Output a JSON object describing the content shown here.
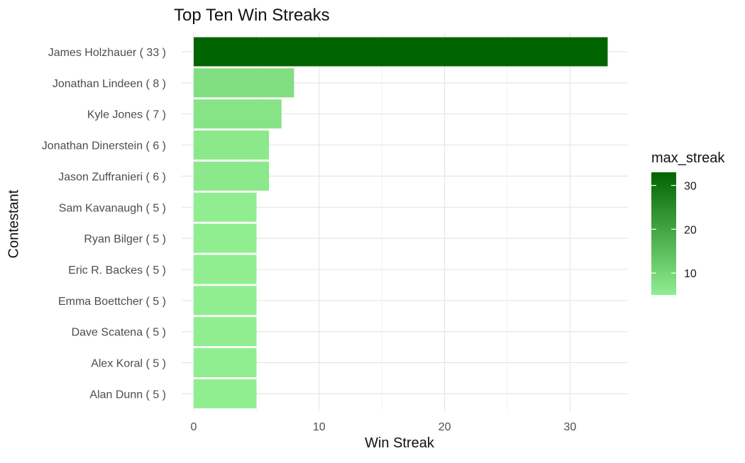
{
  "chart_data": {
    "type": "bar",
    "orientation": "horizontal",
    "title": "Top Ten Win Streaks",
    "xlabel": "Win Streak",
    "ylabel": "Contestant",
    "xlim": [
      0,
      35
    ],
    "x_ticks": [
      0,
      10,
      20,
      30
    ],
    "grid": true,
    "categories": [
      "James Holzhauer ( 33 )",
      "Jonathan Lindeen ( 8 )",
      "Kyle Jones ( 7 )",
      "Jonathan Dinerstein ( 6 )",
      "Jason Zuffranieri ( 6 )",
      "Sam Kavanaugh ( 5 )",
      "Ryan Bilger ( 5 )",
      "Eric R. Backes ( 5 )",
      "Emma Boettcher ( 5 )",
      "Dave Scatena ( 5 )",
      "Alex Koral ( 5 )",
      "Alan Dunn ( 5 )"
    ],
    "values": [
      33,
      8,
      7,
      6,
      6,
      5,
      5,
      5,
      5,
      5,
      5,
      5
    ],
    "legend": {
      "title": "max_streak",
      "placement": "right",
      "ticks": [
        10,
        20,
        30
      ],
      "range": [
        5,
        33
      ],
      "color_low": "#90EE90",
      "color_high": "#006400"
    }
  }
}
